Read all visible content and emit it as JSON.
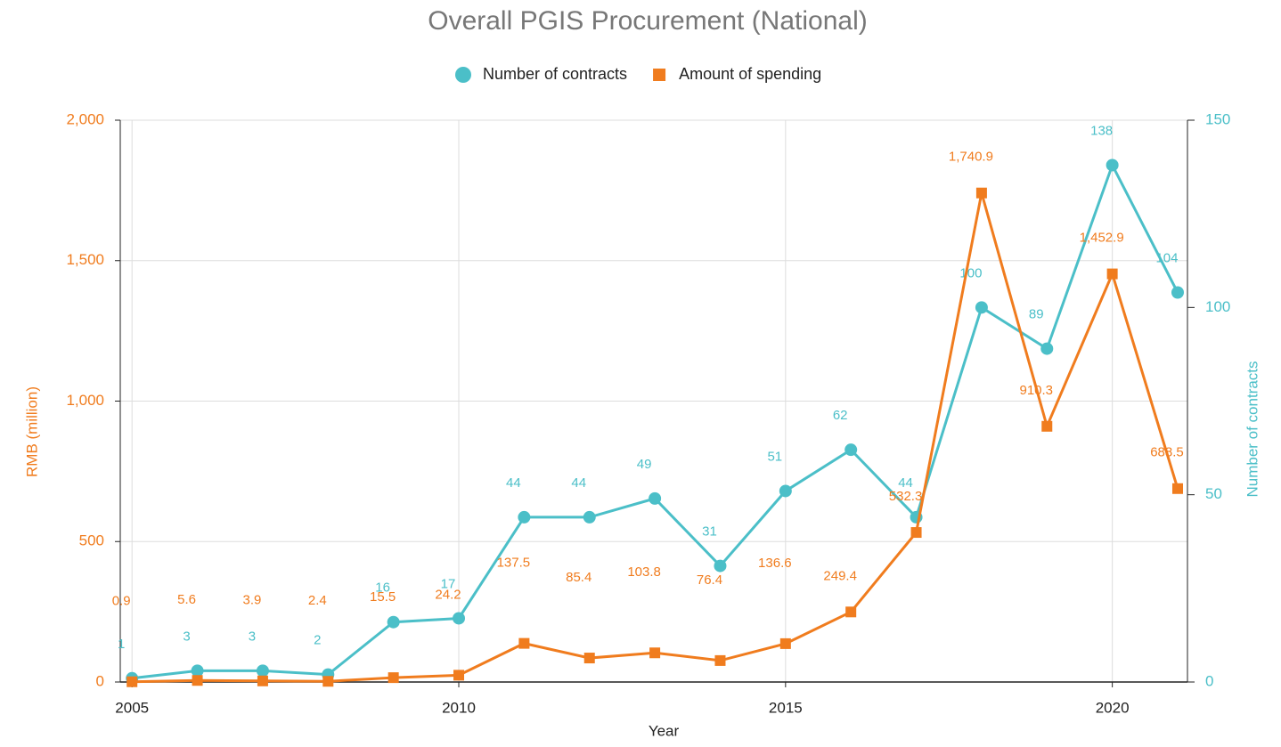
{
  "chart_data": {
    "type": "line",
    "title": "Overall PGIS Procurement (National)",
    "x_label": "Year",
    "y_label": "RMB (million)",
    "y2_label": "Number of contracts",
    "x": [
      2005,
      2006,
      2007,
      2008,
      2009,
      2010,
      2011,
      2012,
      2013,
      2014,
      2015,
      2016,
      2017,
      2018,
      2019,
      2020,
      2021
    ],
    "xlim": [
      2004.82,
      2021.15
    ],
    "xticks": [
      2005,
      2010,
      2015,
      2020
    ],
    "ylim": [
      0,
      2000
    ],
    "yticks": [
      0,
      500,
      {
        "value": 1000,
        "label": "1,000"
      },
      {
        "value": 1500,
        "label": "1,500"
      },
      {
        "value": 2000,
        "label": "2,000"
      }
    ],
    "y2lim": [
      0,
      150
    ],
    "y2ticks": [
      0,
      50,
      100,
      150
    ],
    "grid": true,
    "legend": "top",
    "series": [
      {
        "name": "Number of contracts",
        "color": "#4bbfc8",
        "axis": "y2",
        "marker": "circle",
        "values": [
          1,
          3,
          3,
          2,
          16,
          17,
          44,
          44,
          49,
          31,
          51,
          62,
          44,
          100,
          89,
          138,
          104
        ]
      },
      {
        "name": "Amount of spending",
        "color": "#f07c1e",
        "marker": "square",
        "values": [
          0.9,
          5.6,
          3.9,
          2.4,
          15.5,
          24.2,
          137.5,
          85.4,
          103.8,
          76.4,
          136.6,
          249.4,
          532.3,
          1740.9,
          910.3,
          1452.9,
          688.5
        ],
        "value_labels": [
          "0.9",
          "5.6",
          "3.9",
          "2.4",
          "15.5",
          "24.2",
          "137.5",
          "85.4",
          "103.8",
          "76.4",
          "136.6",
          "249.4",
          "532.3",
          "1,740.9",
          "910.3",
          "1,452.9",
          "688.5"
        ]
      }
    ]
  }
}
